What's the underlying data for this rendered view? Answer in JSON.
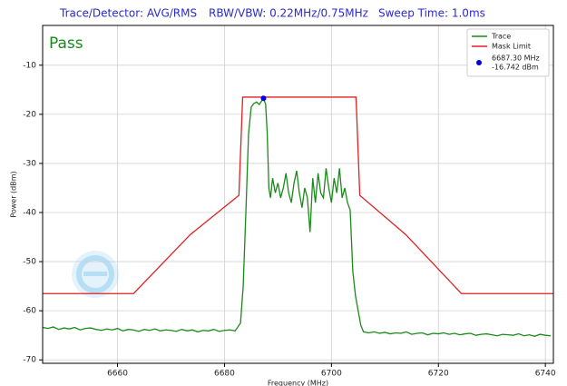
{
  "chart_data": {
    "type": "line",
    "header": [
      "Trace/Detector: AVG/RMS",
      "RBW/VBW: 0.22MHz/0.75MHz",
      "Sweep Time: 1.0ms"
    ],
    "annotation": "Pass",
    "xlabel": "Frequency (MHz)",
    "ylabel": "Power (dBm)",
    "xlim": [
      6646,
      6741.5
    ],
    "ylim": [
      -70.7,
      -1.9
    ],
    "xticks": [
      6660,
      6680,
      6700,
      6720,
      6740
    ],
    "yticks": [
      -10,
      -20,
      -30,
      -40,
      -50,
      -60,
      -70
    ],
    "grid": true,
    "legend": "upper right",
    "series": [
      {
        "name": "Trace",
        "color": "#1a8a1a",
        "x": [
          6646,
          6647,
          6648,
          6649,
          6650,
          6651,
          6652,
          6653,
          6654,
          6655,
          6656,
          6657,
          6658,
          6659,
          6660,
          6661,
          6662,
          6663,
          6664,
          6665,
          6666,
          6667,
          6668,
          6669,
          6670,
          6671,
          6672,
          6673,
          6674,
          6675,
          6676,
          6677,
          6678,
          6679,
          6680,
          6681,
          6682,
          6683,
          6683.5,
          6684,
          6684.5,
          6685,
          6685.5,
          6686,
          6686.5,
          6687,
          6687.3,
          6687.7,
          6688,
          6688.3,
          6688.6,
          6689,
          6689.5,
          6690,
          6690.5,
          6691,
          6691.5,
          6692,
          6692.5,
          6693,
          6693.5,
          6694,
          6694.5,
          6695,
          6695.5,
          6696,
          6696.5,
          6697,
          6697.5,
          6698,
          6698.5,
          6699,
          6699.5,
          6700,
          6700.5,
          6701,
          6701.5,
          6702,
          6702.5,
          6703,
          6703.5,
          6704,
          6704.5,
          6705,
          6705.5,
          6706,
          6707,
          6708,
          6709,
          6710,
          6711,
          6712,
          6713,
          6714,
          6715,
          6716,
          6717,
          6718,
          6719,
          6720,
          6721,
          6722,
          6723,
          6724,
          6725,
          6726,
          6727,
          6728,
          6729,
          6730,
          6731,
          6732,
          6733,
          6734,
          6735,
          6736,
          6737,
          6738,
          6739,
          6740,
          6741
        ],
        "values": [
          -63.4,
          -63.6,
          -63.3,
          -63.8,
          -63.5,
          -63.7,
          -63.4,
          -63.9,
          -63.6,
          -63.5,
          -63.8,
          -64.0,
          -63.7,
          -63.9,
          -63.6,
          -64.1,
          -63.8,
          -63.9,
          -64.2,
          -63.8,
          -64.0,
          -63.7,
          -64.1,
          -63.9,
          -64.0,
          -64.2,
          -63.8,
          -64.1,
          -63.9,
          -64.3,
          -64.0,
          -64.1,
          -63.8,
          -64.2,
          -64.0,
          -63.9,
          -64.1,
          -62.5,
          -55,
          -40,
          -24,
          -18.5,
          -17.8,
          -17.5,
          -18,
          -17.2,
          -16.742,
          -18,
          -24,
          -35,
          -37,
          -33,
          -36,
          -34,
          -37,
          -35,
          -32,
          -36,
          -38,
          -34,
          -31.5,
          -36,
          -39,
          -35,
          -37,
          -44,
          -33,
          -38,
          -32,
          -36,
          -37,
          -31,
          -35,
          -38,
          -33,
          -36,
          -31,
          -37,
          -35,
          -38,
          -39.5,
          -52,
          -57,
          -60,
          -63,
          -64.3,
          -64.5,
          -64.3,
          -64.6,
          -64.4,
          -64.7,
          -64.5,
          -64.6,
          -64.3,
          -64.8,
          -64.6,
          -64.5,
          -64.9,
          -64.6,
          -64.7,
          -64.5,
          -64.8,
          -64.6,
          -64.9,
          -64.7,
          -64.6,
          -65.0,
          -64.8,
          -64.7,
          -64.9,
          -65.1,
          -64.8,
          -64.9,
          -65.0,
          -64.7,
          -65.1,
          -64.9,
          -65.2,
          -64.8,
          -65.0,
          -65.1
        ]
      },
      {
        "name": "Mask Limit",
        "color": "#e02020",
        "x": [
          6646,
          6663,
          6673.6,
          6682.7,
          6683.4,
          6704.6,
          6705.3,
          6713.9,
          6724.3,
          6741.5
        ],
        "values": [
          -56.5,
          -56.5,
          -44.5,
          -36.5,
          -16.5,
          -16.5,
          -36.5,
          -44.5,
          -56.5,
          -56.5
        ]
      }
    ],
    "marker": {
      "x": 6687.3,
      "y": -16.742,
      "color": "#0000dd",
      "labels": [
        "6687.30 MHz",
        "-16.742 dBm"
      ]
    }
  }
}
